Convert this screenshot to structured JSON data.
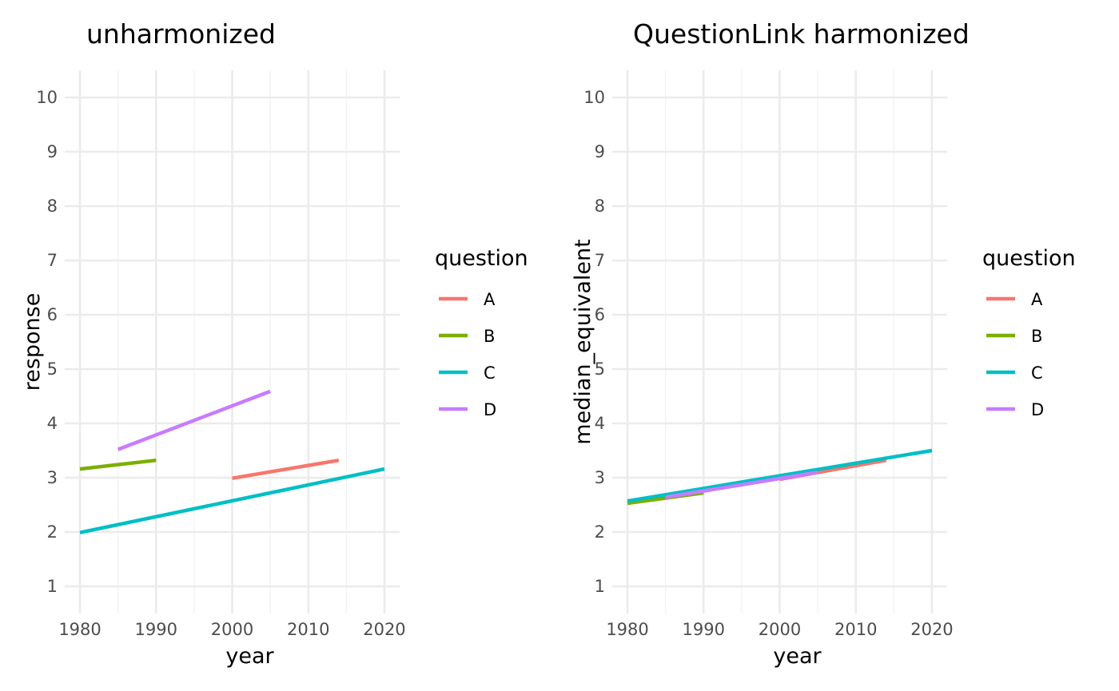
{
  "chart_data": [
    {
      "type": "line",
      "title": "unharmonized",
      "xlabel": "year",
      "ylabel": "response",
      "xlim": [
        1978,
        2022
      ],
      "ylim": [
        0.5,
        10.5
      ],
      "xticks": [
        1980,
        1990,
        2000,
        2010,
        2020
      ],
      "yticks": [
        1,
        2,
        3,
        4,
        5,
        6,
        7,
        8,
        9,
        10
      ],
      "grid": true,
      "legend": {
        "title": "question",
        "position": "right"
      },
      "series": [
        {
          "name": "A",
          "color": "#F8766D",
          "x": [
            2000,
            2014
          ],
          "y": [
            2.99,
            3.32
          ]
        },
        {
          "name": "B",
          "color": "#7CAE00",
          "x": [
            1980,
            1990
          ],
          "y": [
            3.16,
            3.32
          ]
        },
        {
          "name": "C",
          "color": "#00BFC4",
          "x": [
            1980,
            2020
          ],
          "y": [
            1.99,
            3.16
          ]
        },
        {
          "name": "D",
          "color": "#C77CFF",
          "x": [
            1985,
            2005
          ],
          "y": [
            3.52,
            4.59
          ]
        }
      ]
    },
    {
      "type": "line",
      "title": "QuestionLink harmonized",
      "xlabel": "year",
      "ylabel": "median_equivalent",
      "xlim": [
        1978,
        2022
      ],
      "ylim": [
        0.5,
        10.5
      ],
      "xticks": [
        1980,
        1990,
        2000,
        2010,
        2020
      ],
      "yticks": [
        1,
        2,
        3,
        4,
        5,
        6,
        7,
        8,
        9,
        10
      ],
      "grid": true,
      "legend": {
        "title": "question",
        "position": "right"
      },
      "series": [
        {
          "name": "A",
          "color": "#F8766D",
          "x": [
            2000,
            2014
          ],
          "y": [
            2.97,
            3.32
          ]
        },
        {
          "name": "B",
          "color": "#7CAE00",
          "x": [
            1980,
            1990
          ],
          "y": [
            2.53,
            2.72
          ]
        },
        {
          "name": "C",
          "color": "#00BFC4",
          "x": [
            1980,
            2020
          ],
          "y": [
            2.57,
            3.5
          ]
        },
        {
          "name": "D",
          "color": "#C77CFF",
          "x": [
            1985,
            2005
          ],
          "y": [
            2.64,
            3.1
          ]
        }
      ]
    }
  ]
}
